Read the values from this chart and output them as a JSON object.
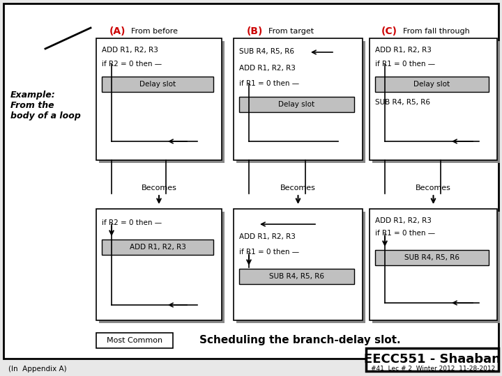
{
  "bg_color": "#e8e8e8",
  "title": "Scheduling the branch-delay slot.",
  "footer_left": "(In  Appendix A)",
  "footer_right": "#41  Lec # 2  Winter 2012  11-28-2012",
  "brand": "EECC551 - Shaaban",
  "example_text": "Example:\nFrom the\nbody of a loop",
  "col_labels": [
    "(A)",
    "(B)",
    "(C)"
  ],
  "col_sublabels": [
    "From before",
    "From target",
    "From fall through"
  ],
  "label_color": "#cc0000",
  "shadow_color": "#888888",
  "gray_box_color": "#c0c0c0"
}
